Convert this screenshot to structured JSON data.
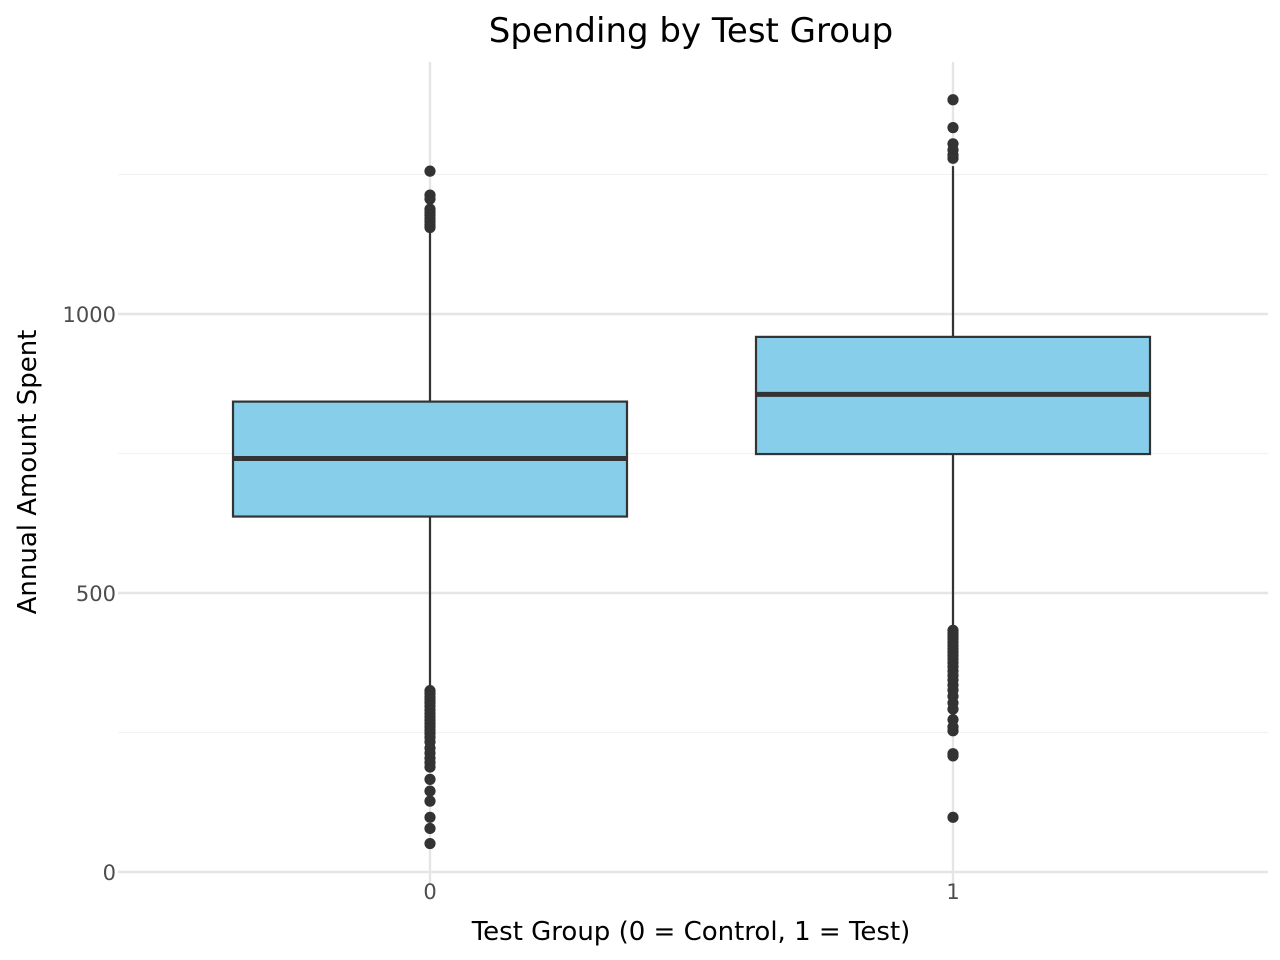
{
  "chart_data": {
    "type": "boxplot",
    "title": "Spending by Test Group",
    "xlabel": "Test Group (0 = Control, 1 = Test)",
    "ylabel": "Annual Amount Spent",
    "ylim": [
      -20,
      1450
    ],
    "y_ticks": [
      0,
      500,
      1000
    ],
    "y_minor_ticks": [
      250,
      750,
      1250
    ],
    "grid": true,
    "categories": [
      "0",
      "1"
    ],
    "fill_color": "#87ceeb",
    "line_color": "#333333",
    "boxes": [
      {
        "category": "0",
        "whisker_low": 330,
        "q1": 637,
        "median": 741,
        "q3": 843,
        "whisker_high": 1150,
        "outliers_high": [
          1256,
          1213,
          1206,
          1188,
          1182,
          1177,
          1171,
          1166,
          1160,
          1155
        ],
        "outliers_low": [
          325,
          320,
          314,
          309,
          303,
          297,
          290,
          284,
          278,
          272,
          266,
          260,
          254,
          248,
          241,
          233,
          222,
          213,
          204,
          196,
          188,
          166,
          145,
          127,
          98,
          78,
          51
        ]
      },
      {
        "category": "1",
        "whisker_low": 438,
        "q1": 749,
        "median": 856,
        "q3": 959,
        "whisker_high": 1265,
        "outliers_high": [
          1384,
          1334,
          1305,
          1294,
          1285,
          1279
        ],
        "outliers_low": [
          433,
          428,
          423,
          418,
          412,
          406,
          400,
          394,
          388,
          382,
          375,
          368,
          360,
          352,
          344,
          335,
          326,
          315,
          303,
          292,
          273,
          260,
          253,
          212,
          208,
          98
        ]
      }
    ]
  }
}
